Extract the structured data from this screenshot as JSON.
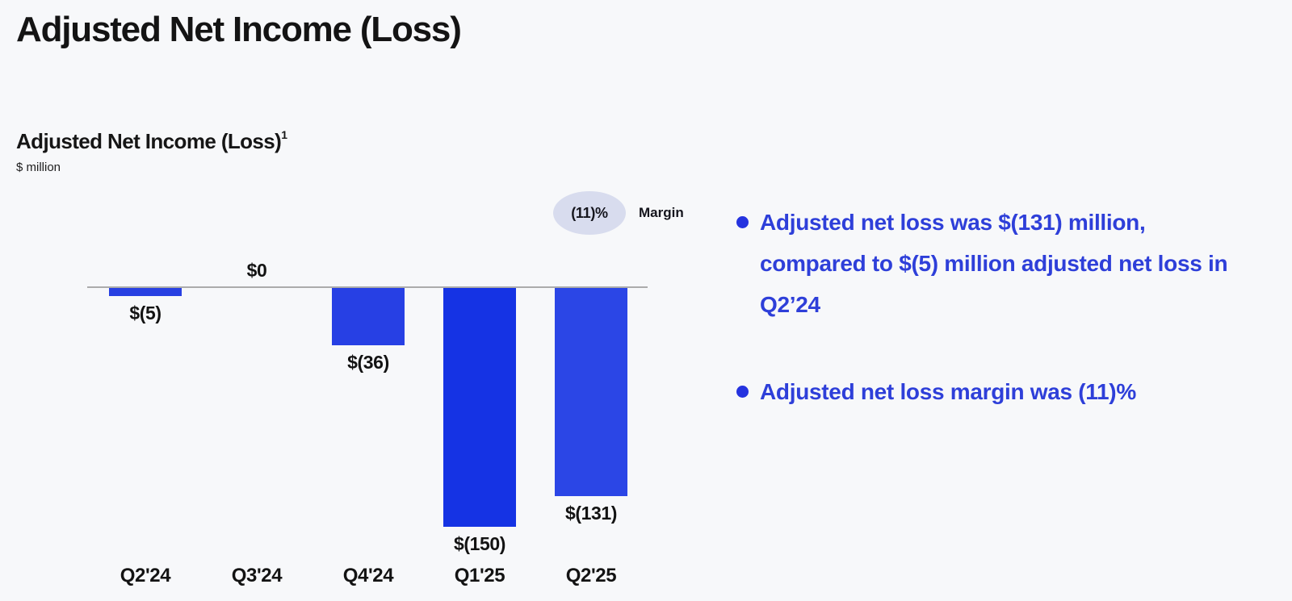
{
  "page": {
    "title": "Adjusted Net Income (Loss)",
    "background": "#f7f8fa"
  },
  "chart": {
    "subtitle": "Adjusted Net Income (Loss)",
    "footnote_marker": "1",
    "unit_label": "$ million",
    "margin_badge": {
      "value": "(11)%",
      "label": "Margin",
      "bg_color": "#d8dcee"
    }
  },
  "chart_data": {
    "type": "bar",
    "title": "Adjusted Net Income (Loss)",
    "ylabel": "$ million",
    "categories": [
      "Q2'24",
      "Q3'24",
      "Q4'24",
      "Q1'25",
      "Q2'25"
    ],
    "values": [
      -5,
      0,
      -36,
      -150,
      -131
    ],
    "value_labels": [
      "$(5)",
      "$0",
      "$(36)",
      "$(150)",
      "$(131)"
    ],
    "bar_colors": [
      "#2840e2",
      "#2840e2",
      "#2740e4",
      "#1533e4",
      "#2b46e6"
    ],
    "ylim": [
      -160,
      10
    ],
    "baseline": 0,
    "grid": false,
    "legend": "none",
    "margin_annotation": {
      "value": "(11)%",
      "label": "Margin"
    }
  },
  "bullets": [
    {
      "lines": [
        "Adjusted net loss was $(131) million,",
        "compared to $(5) million adjusted net loss in",
        "Q2’24"
      ]
    },
    {
      "lines": [
        "Adjusted net loss margin was (11)%"
      ]
    }
  ],
  "colors": {
    "bullet_text": "#2e3fd9",
    "bullet_dot": "#2533df",
    "axis_line": "#ababab"
  }
}
